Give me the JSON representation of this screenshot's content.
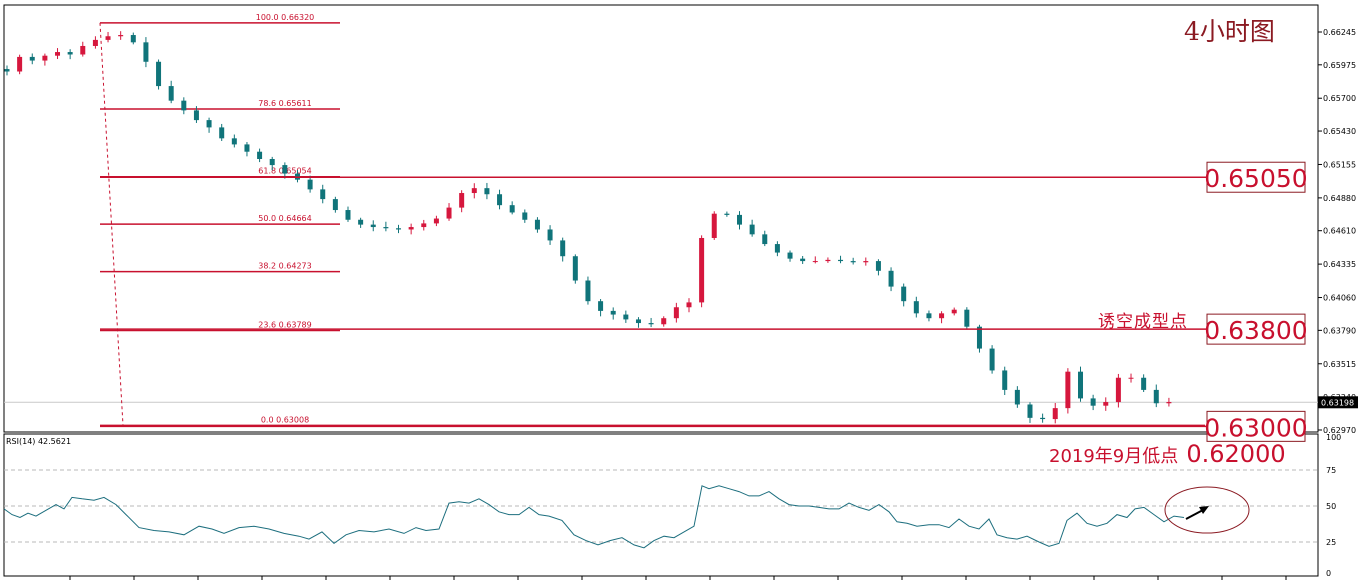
{
  "colors": {
    "bull": "#d6173d",
    "bear": "#10747a",
    "fib": "#c8102e",
    "rsi": "#1c6e7e",
    "grid": "#b8b8b8"
  },
  "chart_data": [
    {
      "type": "candlestick",
      "title": "4小时图",
      "y_ticks": [
        "0.66245",
        "0.65975",
        "0.65700",
        "0.65430",
        "0.65155",
        "0.64880",
        "0.64610",
        "0.64335",
        "0.64060",
        "0.63790",
        "0.63515",
        "0.63240",
        "0.62970"
      ],
      "ylim": [
        0.6292,
        0.6636
      ],
      "current_price": "0.63198",
      "fib_levels": [
        {
          "label": "100.0  0.66320",
          "value": 0.6632
        },
        {
          "label": "78.6  0.65611",
          "value": 0.65611
        },
        {
          "label": "61.8  0.65054",
          "value": 0.65054
        },
        {
          "label": "50.0  0.64664",
          "value": 0.64664
        },
        {
          "label": "38.2  0.64273",
          "value": 0.64273
        },
        {
          "label": "23.6  0.63789",
          "value": 0.63789
        },
        {
          "label": "0.0  0.63008",
          "value": 0.63008
        }
      ],
      "price_boxes": [
        {
          "text": "0.65050",
          "value": 0.6505
        },
        {
          "text": "0.63800",
          "value": 0.638
        },
        {
          "text": "0.63000",
          "value": 0.63
        }
      ],
      "annotations": {
        "bull_trap": "诱空成型点",
        "sept_low": "2019年9月低点",
        "sept_low_value": "0.62000"
      },
      "close_path": [
        0.6592,
        0.6604,
        0.6601,
        0.6605,
        0.6608,
        0.6606,
        0.6613,
        0.6618,
        0.6621,
        0.6622,
        0.6616,
        0.66,
        0.658,
        0.6568,
        0.656,
        0.6552,
        0.6546,
        0.6537,
        0.6532,
        0.6526,
        0.652,
        0.6515,
        0.6508,
        0.6503,
        0.6495,
        0.6487,
        0.6478,
        0.647,
        0.6466,
        0.6464,
        0.6463,
        0.6462,
        0.6464,
        0.6467,
        0.6471,
        0.648,
        0.6492,
        0.6496,
        0.6491,
        0.6482,
        0.6476,
        0.647,
        0.6462,
        0.6453,
        0.644,
        0.642,
        0.6403,
        0.6395,
        0.6392,
        0.6388,
        0.6385,
        0.6384,
        0.6389,
        0.6398,
        0.6402,
        0.6455,
        0.6475,
        0.6474,
        0.6466,
        0.6458,
        0.645,
        0.6443,
        0.6438,
        0.6436,
        0.6436,
        0.6437,
        0.6436,
        0.6435,
        0.6436,
        0.6428,
        0.6415,
        0.6403,
        0.6393,
        0.6389,
        0.6393,
        0.6396,
        0.6382,
        0.6364,
        0.6346,
        0.633,
        0.6318,
        0.6307,
        0.6306,
        0.6315,
        0.6345,
        0.6323,
        0.6317,
        0.632,
        0.634,
        0.634,
        0.633,
        0.6319,
        0.632
      ],
      "rsi": {
        "label": "RSI(14) 42.5621",
        "period": 14,
        "value": 42.5621,
        "ylim": [
          0,
          100
        ],
        "ticks": [
          "100",
          "75",
          "50",
          "25",
          "0"
        ],
        "levels": [
          75,
          50,
          25
        ],
        "points": [
          [
            0,
            48
          ],
          [
            8,
            44
          ],
          [
            16,
            42
          ],
          [
            24,
            45
          ],
          [
            32,
            43
          ],
          [
            42,
            47
          ],
          [
            52,
            51
          ],
          [
            60,
            48
          ],
          [
            68,
            56
          ],
          [
            78,
            55
          ],
          [
            90,
            54
          ],
          [
            100,
            56
          ],
          [
            112,
            51
          ],
          [
            122,
            44
          ],
          [
            135,
            35
          ],
          [
            150,
            33
          ],
          [
            165,
            32
          ],
          [
            180,
            30
          ],
          [
            195,
            36
          ],
          [
            208,
            34
          ],
          [
            220,
            31
          ],
          [
            235,
            35
          ],
          [
            250,
            36
          ],
          [
            265,
            34
          ],
          [
            280,
            31
          ],
          [
            295,
            29
          ],
          [
            305,
            27
          ],
          [
            318,
            32
          ],
          [
            330,
            24
          ],
          [
            342,
            30
          ],
          [
            355,
            33
          ],
          [
            370,
            32
          ],
          [
            385,
            34
          ],
          [
            400,
            31
          ],
          [
            412,
            35
          ],
          [
            422,
            33
          ],
          [
            435,
            34
          ],
          [
            445,
            52
          ],
          [
            455,
            53
          ],
          [
            465,
            52
          ],
          [
            475,
            55
          ],
          [
            485,
            51
          ],
          [
            495,
            46
          ],
          [
            505,
            44
          ],
          [
            515,
            44
          ],
          [
            525,
            49
          ],
          [
            535,
            44
          ],
          [
            545,
            43
          ],
          [
            558,
            40
          ],
          [
            570,
            30
          ],
          [
            582,
            26
          ],
          [
            594,
            23
          ],
          [
            606,
            26
          ],
          [
            618,
            28
          ],
          [
            630,
            23
          ],
          [
            640,
            21
          ],
          [
            650,
            26
          ],
          [
            660,
            29
          ],
          [
            670,
            28
          ],
          [
            680,
            32
          ],
          [
            690,
            36
          ],
          [
            698,
            64
          ],
          [
            705,
            62
          ],
          [
            715,
            64
          ],
          [
            725,
            62
          ],
          [
            735,
            60
          ],
          [
            745,
            57
          ],
          [
            755,
            57
          ],
          [
            765,
            60
          ],
          [
            775,
            55
          ],
          [
            785,
            51
          ],
          [
            795,
            50
          ],
          [
            805,
            50
          ],
          [
            815,
            49
          ],
          [
            825,
            48
          ],
          [
            835,
            48
          ],
          [
            845,
            52
          ],
          [
            855,
            49
          ],
          [
            865,
            47
          ],
          [
            875,
            51
          ],
          [
            885,
            46
          ],
          [
            893,
            39
          ],
          [
            903,
            38
          ],
          [
            913,
            36
          ],
          [
            925,
            37
          ],
          [
            935,
            37
          ],
          [
            945,
            35
          ],
          [
            955,
            41
          ],
          [
            965,
            36
          ],
          [
            975,
            34
          ],
          [
            985,
            41
          ],
          [
            993,
            30
          ],
          [
            1003,
            28
          ],
          [
            1013,
            27
          ],
          [
            1023,
            29
          ],
          [
            1035,
            25
          ],
          [
            1045,
            22
          ],
          [
            1055,
            24
          ],
          [
            1063,
            40
          ],
          [
            1073,
            45
          ],
          [
            1083,
            38
          ],
          [
            1093,
            36
          ],
          [
            1103,
            38
          ],
          [
            1113,
            44
          ],
          [
            1123,
            42
          ],
          [
            1131,
            48
          ],
          [
            1140,
            49
          ],
          [
            1150,
            44
          ],
          [
            1160,
            39
          ],
          [
            1170,
            43
          ],
          [
            1180,
            42
          ]
        ]
      }
    }
  ]
}
